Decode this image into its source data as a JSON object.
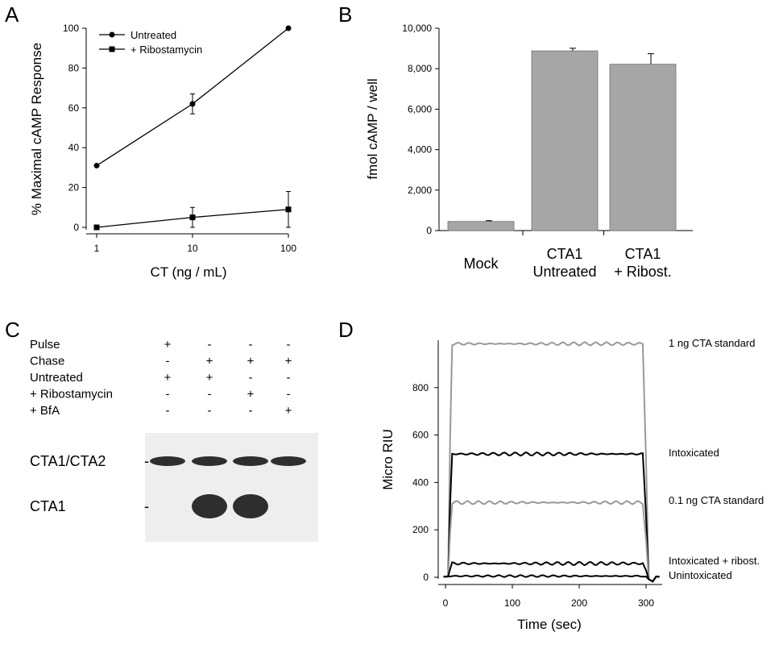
{
  "panels": [
    {
      "id": "A",
      "letter": "A"
    },
    {
      "id": "B",
      "letter": "B"
    },
    {
      "id": "C",
      "letter": "C"
    },
    {
      "id": "D",
      "letter": "D"
    }
  ],
  "chart_data": [
    {
      "panel": "A",
      "type": "line",
      "xscale": "log",
      "x": [
        1,
        10,
        100
      ],
      "xticks": [
        "1",
        "10",
        "100"
      ],
      "yticks": [
        "0",
        "20",
        "40",
        "60",
        "80",
        "100"
      ],
      "ylim": [
        0,
        100
      ],
      "xlabel": "CT (ng / mL)",
      "ylabel": "% Maximal cAMP Response",
      "legend_position": "top-left",
      "series": [
        {
          "name": "Untreated",
          "marker": "circle",
          "values": [
            31,
            62,
            100
          ],
          "errors": [
            0,
            5,
            0
          ]
        },
        {
          "name": "+ Ribostamycin",
          "marker": "square",
          "values": [
            0,
            5,
            9
          ],
          "errors": [
            0,
            5,
            9
          ]
        }
      ]
    },
    {
      "panel": "B",
      "type": "bar",
      "categories": [
        [
          "Mock"
        ],
        [
          "CTA1",
          "Untreated"
        ],
        [
          "CTA1",
          "+ Ribost."
        ]
      ],
      "values": [
        450,
        8880,
        8220
      ],
      "errors": [
        40,
        130,
        520
      ],
      "ylim": [
        0,
        10000
      ],
      "yticks": [
        "0",
        "2,000",
        "4,000",
        "6,000",
        "8,000",
        "10,000"
      ],
      "ylabel": "fmol cAMP / well",
      "bar_color": "#a6a6a6"
    },
    {
      "panel": "D",
      "type": "line",
      "xlim": [
        0,
        320
      ],
      "ylim": [
        0,
        1000
      ],
      "xticks": [
        "0",
        "100",
        "200",
        "300"
      ],
      "yticks": [
        "0",
        "200",
        "400",
        "600",
        "800"
      ],
      "xlabel": "Time (sec)",
      "ylabel": "Micro RIU",
      "series": [
        {
          "name": "1 ng CTA standard",
          "color": "#999999",
          "level": 985
        },
        {
          "name": "Intoxicated",
          "color": "#000000",
          "level": 520
        },
        {
          "name": "0.1 ng CTA standard",
          "color": "#999999",
          "level": 315
        },
        {
          "name": "Intoxicated + ribost.",
          "color": "#000000",
          "level": 58
        },
        {
          "name": "Unintoxicated",
          "color": "#000000",
          "level": 5
        }
      ]
    }
  ],
  "blot": {
    "rows": [
      {
        "label": "Pulse",
        "marks": [
          "+",
          "-",
          "-",
          "-"
        ]
      },
      {
        "label": "Chase",
        "marks": [
          "-",
          "+",
          "+",
          "+"
        ]
      },
      {
        "label": "Untreated",
        "marks": [
          "+",
          "+",
          "-",
          "-"
        ]
      },
      {
        "label": "+ Ribostamycin",
        "marks": [
          "-",
          "-",
          "+",
          "-"
        ]
      },
      {
        "label": "+ BfA",
        "marks": [
          "-",
          "-",
          "-",
          "+"
        ]
      }
    ],
    "bands": [
      {
        "label": "CTA1/CTA2",
        "dash": "-",
        "lanes": [
          1,
          1,
          1,
          1
        ]
      },
      {
        "label": "CTA1",
        "dash": "-",
        "lanes": [
          0,
          1,
          1,
          0
        ]
      }
    ]
  }
}
